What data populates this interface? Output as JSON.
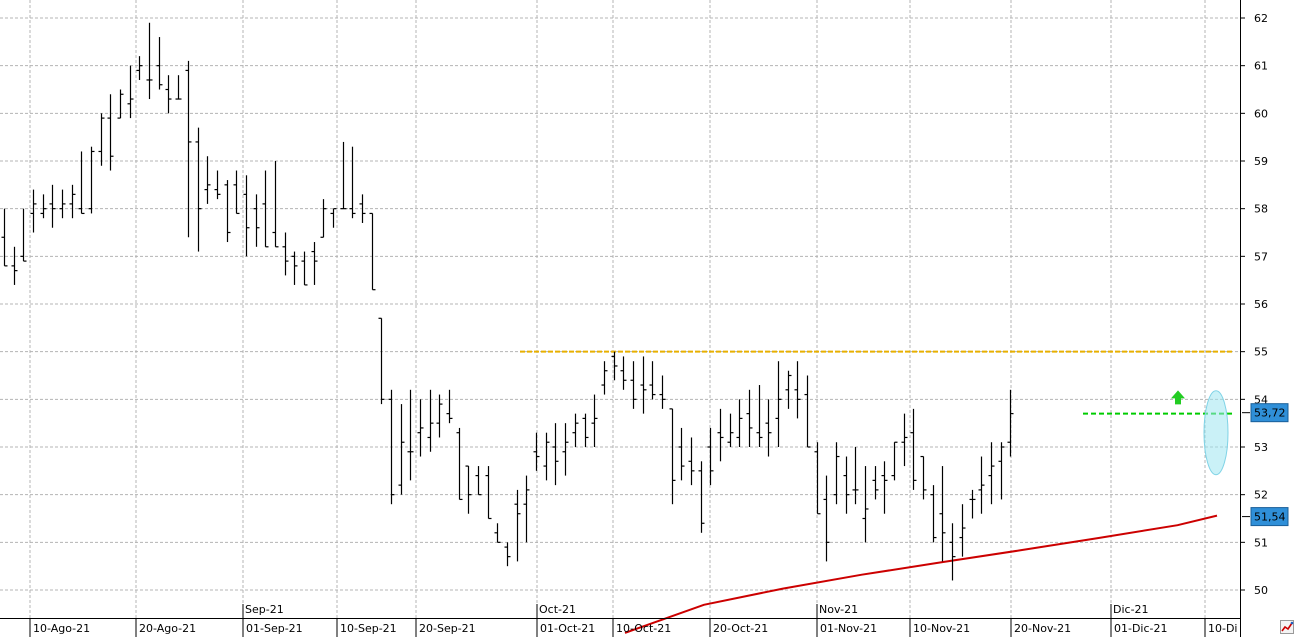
{
  "chart_data": {
    "type": "ohlc-bar",
    "title": "",
    "xlabel": "",
    "ylabel": "",
    "ylim": [
      49.5,
      62.2
    ],
    "y_ticks": [
      "62",
      "61",
      "60",
      "59",
      "58",
      "57",
      "56",
      "55",
      "54",
      "53",
      "52",
      "51",
      "50"
    ],
    "x_ticks_top": [
      "Sep-21",
      "Oct-21",
      "Nov-21",
      "Dic-21"
    ],
    "x_ticks_bottom": [
      "10-Ago-21",
      "20-Ago-21",
      "01-Sep-21",
      "10-Sep-21",
      "20-Sep-21",
      "01-Oct-21",
      "10-Oct-21",
      "20-Oct-21",
      "01-Nov-21",
      "10-Nov-21",
      "20-Nov-21",
      "01-Dic-21",
      "10-Di"
    ],
    "grid": true,
    "bars": [
      [
        57.4,
        58.0,
        56.8,
        56.8
      ],
      [
        56.8,
        57.2,
        56.4,
        56.7
      ],
      [
        57.0,
        58.0,
        56.9,
        56.9
      ],
      [
        57.9,
        58.4,
        57.5,
        58.1
      ],
      [
        57.9,
        58.3,
        57.8,
        58.0
      ],
      [
        58.1,
        58.5,
        57.6,
        58.0
      ],
      [
        58.0,
        58.4,
        57.8,
        58.1
      ],
      [
        58.1,
        58.5,
        57.8,
        58.3
      ],
      [
        58.0,
        59.2,
        57.9,
        57.9
      ],
      [
        58.0,
        59.3,
        57.9,
        59.2
      ],
      [
        59.2,
        60.0,
        58.9,
        59.9
      ],
      [
        59.9,
        60.4,
        58.8,
        59.1
      ],
      [
        59.9,
        60.5,
        59.9,
        60.4
      ],
      [
        60.2,
        61.0,
        59.9,
        60.3
      ],
      [
        60.9,
        61.2,
        60.7,
        61.0
      ],
      [
        60.7,
        61.9,
        60.3,
        60.7
      ],
      [
        61.0,
        61.6,
        60.5,
        60.6
      ],
      [
        60.5,
        60.8,
        60.0,
        60.3
      ],
      [
        60.3,
        60.8,
        60.3,
        60.3
      ],
      [
        60.9,
        61.1,
        57.4,
        59.4
      ],
      [
        59.4,
        59.7,
        57.1,
        58.0
      ],
      [
        58.4,
        59.1,
        58.1,
        58.5
      ],
      [
        58.4,
        58.8,
        58.2,
        58.3
      ],
      [
        58.5,
        58.6,
        57.3,
        57.5
      ],
      [
        58.5,
        58.8,
        57.9,
        57.9
      ],
      [
        58.3,
        58.7,
        57.0,
        57.6
      ],
      [
        58.0,
        58.3,
        57.2,
        57.6
      ],
      [
        58.1,
        58.8,
        57.2,
        57.2
      ],
      [
        57.5,
        59.0,
        57.2,
        57.2
      ],
      [
        57.2,
        57.5,
        56.6,
        56.9
      ],
      [
        57.0,
        57.1,
        56.4,
        56.8
      ],
      [
        56.9,
        57.1,
        56.4,
        56.4
      ],
      [
        57.1,
        57.3,
        56.4,
        56.9
      ],
      [
        57.4,
        58.2,
        57.4,
        58.0
      ],
      [
        57.9,
        58.0,
        57.6,
        58.0
      ],
      [
        58.0,
        59.4,
        58.0,
        58.0
      ],
      [
        58.0,
        59.3,
        57.8,
        57.9
      ],
      [
        58.1,
        58.3,
        57.7,
        57.9
      ],
      [
        57.9,
        57.9,
        56.3,
        56.3
      ],
      [
        55.7,
        55.7,
        53.9,
        54.0
      ],
      [
        54.0,
        54.2,
        51.8,
        52.0
      ],
      [
        52.2,
        53.9,
        52.0,
        53.1
      ],
      [
        52.9,
        54.2,
        52.3,
        52.9
      ],
      [
        53.3,
        54.0,
        52.8,
        53.4
      ],
      [
        53.2,
        54.2,
        52.9,
        53.5
      ],
      [
        53.5,
        54.1,
        53.2,
        53.9
      ],
      [
        53.7,
        54.2,
        53.5,
        53.6
      ],
      [
        53.3,
        53.4,
        51.9,
        51.9
      ],
      [
        52.6,
        52.6,
        51.6,
        52.0
      ],
      [
        52.4,
        52.6,
        52.0,
        52.0
      ],
      [
        52.4,
        52.6,
        51.5,
        51.5
      ],
      [
        51.2,
        51.4,
        51.0,
        51.0
      ],
      [
        50.9,
        51.0,
        50.5,
        50.7
      ],
      [
        51.8,
        52.1,
        50.6,
        51.6
      ],
      [
        51.8,
        52.4,
        51.0,
        52.1
      ],
      [
        52.9,
        53.3,
        52.5,
        52.8
      ],
      [
        52.6,
        53.3,
        52.3,
        53.1
      ],
      [
        53.0,
        53.5,
        52.2,
        52.7
      ],
      [
        52.9,
        53.5,
        52.4,
        53.1
      ],
      [
        53.3,
        53.7,
        53.0,
        53.5
      ],
      [
        53.6,
        53.7,
        53.0,
        53.2
      ],
      [
        53.5,
        54.1,
        53.0,
        53.6
      ],
      [
        54.3,
        54.8,
        54.1,
        54.6
      ],
      [
        54.9,
        55.0,
        54.4,
        54.7
      ],
      [
        54.6,
        54.9,
        54.2,
        54.4
      ],
      [
        54.4,
        54.8,
        53.8,
        54.0
      ],
      [
        54.3,
        54.9,
        53.7,
        54.2
      ],
      [
        54.3,
        54.8,
        54.0,
        54.1
      ],
      [
        54.1,
        54.5,
        53.8,
        54.0
      ],
      [
        53.8,
        53.8,
        51.8,
        52.3
      ],
      [
        53.0,
        53.4,
        52.3,
        52.6
      ],
      [
        52.7,
        53.2,
        52.2,
        52.5
      ],
      [
        52.5,
        52.7,
        51.2,
        51.4
      ],
      [
        53.0,
        53.4,
        52.2,
        52.5
      ],
      [
        53.3,
        53.8,
        52.7,
        53.2
      ],
      [
        53.1,
        53.7,
        53.0,
        53.3
      ],
      [
        53.2,
        54.0,
        53.0,
        53.6
      ],
      [
        53.7,
        54.2,
        53.0,
        53.4
      ],
      [
        53.3,
        54.3,
        53.0,
        53.2
      ],
      [
        53.5,
        54.0,
        52.8,
        53.3
      ],
      [
        53.6,
        54.8,
        53.0,
        54.0
      ],
      [
        54.2,
        54.6,
        53.8,
        54.5
      ],
      [
        54.2,
        54.8,
        53.6,
        54.0
      ],
      [
        54.1,
        54.5,
        53.0,
        53.0
      ],
      [
        52.9,
        53.1,
        51.6,
        51.6
      ],
      [
        51.9,
        52.4,
        50.6,
        51.0
      ],
      [
        52.0,
        53.1,
        51.8,
        52.8
      ],
      [
        52.4,
        52.8,
        51.6,
        52.0
      ],
      [
        52.1,
        53.0,
        51.8,
        52.1
      ],
      [
        51.5,
        52.6,
        51.0,
        51.7
      ],
      [
        52.3,
        52.6,
        51.9,
        52.1
      ],
      [
        52.4,
        52.7,
        51.6,
        52.3
      ],
      [
        52.4,
        53.1,
        52.3,
        53.1
      ],
      [
        53.1,
        53.7,
        52.6,
        53.2
      ],
      [
        53.3,
        53.8,
        52.1,
        52.3
      ],
      [
        52.8,
        52.8,
        51.9,
        52.1
      ],
      [
        52.0,
        52.2,
        51.0,
        51.1
      ],
      [
        51.6,
        52.6,
        50.6,
        51.2
      ],
      [
        51.0,
        51.4,
        50.2,
        50.7
      ],
      [
        51.1,
        51.8,
        50.7,
        51.3
      ],
      [
        51.9,
        52.1,
        51.5,
        51.9
      ],
      [
        52.1,
        52.8,
        51.6,
        52.2
      ],
      [
        52.4,
        53.1,
        51.8,
        52.6
      ],
      [
        52.7,
        53.1,
        51.9,
        53.0
      ],
      [
        53.1,
        54.2,
        52.8,
        53.7
      ]
    ],
    "moving_average": {
      "color": "#cc0000",
      "points": [
        [
          0,
          49.1
        ],
        [
          10,
          49.69
        ],
        [
          20,
          50.03
        ],
        [
          30,
          50.32
        ],
        [
          40,
          50.58
        ],
        [
          50,
          50.83
        ],
        [
          60,
          51.09
        ],
        [
          70,
          51.36
        ],
        [
          75,
          51.56
        ]
      ]
    },
    "resistance_line": {
      "value": 55.0,
      "color": "#e8b000",
      "style": "dashed"
    },
    "breakout_line": {
      "value": 53.7,
      "color": "#00cc00",
      "style": "dashed"
    },
    "price_labels": [
      {
        "text": "53,72",
        "value": 53.72,
        "color": "#2f8fd8"
      },
      {
        "text": "51,54",
        "value": 51.54,
        "color": "#2f8fd8"
      }
    ],
    "annotations": {
      "up_arrow_color": "#22cc22",
      "highlight_ellipse_color": "#9fe6f0"
    },
    "bar_color": "#000000",
    "grid_color": "#b4b4b4"
  },
  "icons": {
    "corner": "chart-logo-icon"
  }
}
